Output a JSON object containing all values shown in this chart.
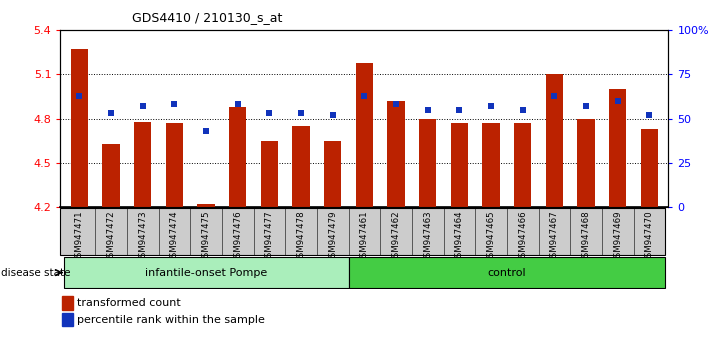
{
  "title": "GDS4410 / 210130_s_at",
  "samples": [
    "GSM947471",
    "GSM947472",
    "GSM947473",
    "GSM947474",
    "GSM947475",
    "GSM947476",
    "GSM947477",
    "GSM947478",
    "GSM947479",
    "GSM947461",
    "GSM947462",
    "GSM947463",
    "GSM947464",
    "GSM947465",
    "GSM947466",
    "GSM947467",
    "GSM947468",
    "GSM947469",
    "GSM947470"
  ],
  "red_values": [
    5.27,
    4.63,
    4.78,
    4.77,
    4.22,
    4.88,
    4.65,
    4.75,
    4.65,
    5.18,
    4.92,
    4.8,
    4.77,
    4.77,
    4.77,
    5.1,
    4.8,
    5.0,
    4.73
  ],
  "blue_values": [
    63,
    53,
    57,
    58,
    43,
    58,
    53,
    53,
    52,
    63,
    58,
    55,
    55,
    57,
    55,
    63,
    57,
    60,
    52
  ],
  "ylim_left": [
    4.2,
    5.4
  ],
  "ylim_right": [
    0,
    100
  ],
  "yticks_left": [
    4.2,
    4.5,
    4.8,
    5.1,
    5.4
  ],
  "yticks_right": [
    0,
    25,
    50,
    75,
    100
  ],
  "ytick_labels_right": [
    "0",
    "25",
    "50",
    "75",
    "100%"
  ],
  "bar_color": "#BB2200",
  "dot_color": "#1133BB",
  "group1_label": "infantile-onset Pompe",
  "group2_label": "control",
  "group1_color": "#AAEEBB",
  "group2_color": "#44CC44",
  "group1_count": 9,
  "group2_count": 10,
  "disease_state_label": "disease state",
  "legend_bar_label": "transformed count",
  "legend_dot_label": "percentile rank within the sample",
  "bar_bottom": 4.2,
  "bar_width": 0.55,
  "xtick_bg_color": "#CCCCCC",
  "grid_yticks": [
    4.5,
    4.8,
    5.1
  ]
}
